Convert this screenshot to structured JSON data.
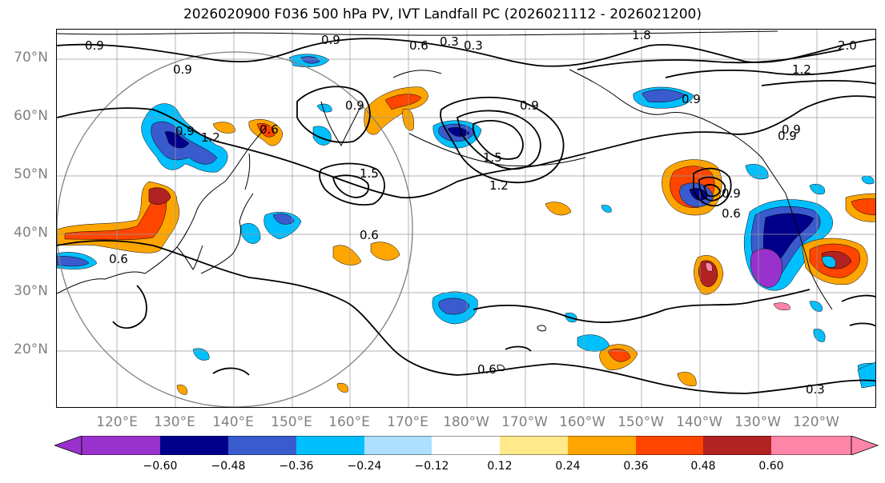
{
  "title": "2026020900 F036 500 hPa PV, IVT Landfall PC (2026021112 - 2026021200)",
  "map": {
    "lat_labels": [
      "70°N",
      "60°N",
      "50°N",
      "40°N",
      "30°N",
      "20°N"
    ],
    "lon_labels": [
      "120°E",
      "130°E",
      "140°E",
      "150°E",
      "160°E",
      "170°E",
      "180°W",
      "170°W",
      "160°W",
      "150°W",
      "140°W",
      "130°W",
      "120°W"
    ],
    "contour_labels": [
      "0.9",
      "0.9",
      "0.6",
      "0.3",
      "1.8",
      "1.5",
      "0.9",
      "0.9",
      "0.9",
      "0.6",
      "0.9",
      "1.5",
      "1.2",
      "1.2",
      "0.6",
      "0.9",
      "0.9",
      "0.6",
      "0.6",
      "0.6",
      "0.3",
      "2.0",
      "1.2",
      "0.9",
      "0.9",
      "0.3"
    ]
  },
  "colorbar": {
    "ticks": [
      "−0.60",
      "−0.48",
      "−0.36",
      "−0.24",
      "−0.12",
      "0.12",
      "0.24",
      "0.36",
      "0.48",
      "0.60"
    ],
    "colors": [
      "#9932CC",
      "#00008B",
      "#3A5BCD",
      "#00BFFF",
      "#ADDFFF",
      "#FFFFFF",
      "#FFE98A",
      "#FFA500",
      "#FF4500",
      "#B22222",
      "#FF85A8"
    ]
  }
}
